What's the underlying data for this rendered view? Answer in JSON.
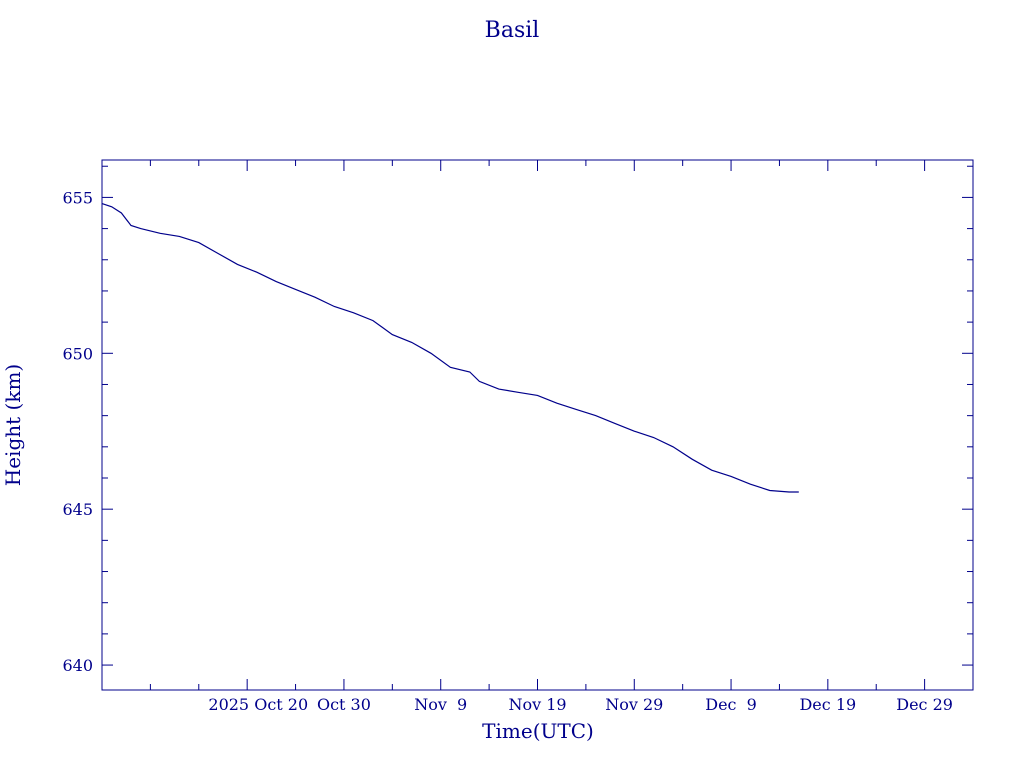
{
  "chart_data": {
    "type": "line",
    "title": "Basil",
    "xlabel": "Time(UTC)",
    "ylabel": "Height (km)",
    "ylim": [
      639.2,
      656.2
    ],
    "xlim": [
      "2025-10-05",
      "2026-01-03"
    ],
    "x_ticks": [
      {
        "date": "2025-10-20",
        "label": "2025 Oct 20"
      },
      {
        "date": "2025-10-30",
        "label": "Oct 30"
      },
      {
        "date": "2025-11-09",
        "label": "Nov  9"
      },
      {
        "date": "2025-11-19",
        "label": "Nov 19"
      },
      {
        "date": "2025-11-29",
        "label": "Nov 29"
      },
      {
        "date": "2025-12-09",
        "label": "Dec  9"
      },
      {
        "date": "2025-12-19",
        "label": "Dec 19"
      },
      {
        "date": "2025-12-29",
        "label": "Dec 29"
      }
    ],
    "y_ticks": [
      640,
      645,
      650,
      655
    ],
    "grid": false,
    "color": "#00008b",
    "series": [
      {
        "x": [
          "2025-10-05",
          "2025-10-06",
          "2025-10-07",
          "2025-10-08",
          "2025-10-09",
          "2025-10-11",
          "2025-10-13",
          "2025-10-15",
          "2025-10-17",
          "2025-10-19",
          "2025-10-21",
          "2025-10-23",
          "2025-10-25",
          "2025-10-27",
          "2025-10-29",
          "2025-10-31",
          "2025-11-02",
          "2025-11-04",
          "2025-11-06",
          "2025-11-08",
          "2025-11-10",
          "2025-11-12",
          "2025-11-13",
          "2025-11-15",
          "2025-11-17",
          "2025-11-19",
          "2025-11-21",
          "2025-11-23",
          "2025-11-25",
          "2025-11-27",
          "2025-11-29",
          "2025-12-01",
          "2025-12-03",
          "2025-12-05",
          "2025-12-07",
          "2025-12-09",
          "2025-12-11",
          "2025-12-13",
          "2025-12-15",
          "2025-12-16"
        ],
        "y": [
          654.8,
          654.7,
          654.5,
          654.1,
          654.0,
          653.85,
          653.75,
          653.55,
          653.2,
          652.85,
          652.6,
          652.3,
          652.05,
          651.8,
          651.5,
          651.3,
          651.05,
          650.6,
          650.35,
          650.0,
          649.55,
          649.4,
          649.1,
          648.85,
          648.75,
          648.65,
          648.4,
          648.2,
          648.0,
          647.75,
          647.5,
          647.3,
          647.0,
          646.6,
          646.25,
          646.05,
          645.8,
          645.6,
          645.55,
          645.55
        ]
      }
    ]
  }
}
